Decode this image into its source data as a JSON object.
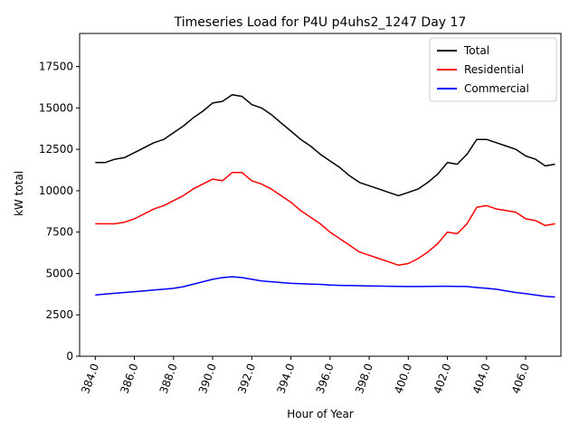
{
  "chart_data": {
    "type": "line",
    "title": "Timeseries Load for P4U p4uhs2_1247  Day 17",
    "xlabel": "Hour of Year",
    "ylabel": "kW total",
    "xlim": [
      383.2,
      407.8
    ],
    "ylim": [
      0,
      19500
    ],
    "x_ticks": [
      384,
      386,
      388,
      390,
      392,
      394,
      396,
      398,
      400,
      402,
      404,
      406
    ],
    "x_tick_labels": [
      "384.0",
      "386.0",
      "388.0",
      "390.0",
      "392.0",
      "394.0",
      "396.0",
      "398.0",
      "400.0",
      "402.0",
      "404.0",
      "406.0"
    ],
    "y_ticks": [
      0,
      2500,
      5000,
      7500,
      10000,
      12500,
      15000,
      17500
    ],
    "y_tick_labels": [
      "0",
      "2500",
      "5000",
      "7500",
      "10000",
      "12500",
      "15000",
      "17500"
    ],
    "legend": {
      "position": "upper right",
      "entries": [
        "Total",
        "Residential",
        "Commercial"
      ]
    },
    "x": [
      384,
      384.5,
      385,
      385.5,
      386,
      386.5,
      387,
      387.5,
      388,
      388.5,
      389,
      389.5,
      390,
      390.5,
      391,
      391.5,
      392,
      392.5,
      393,
      393.5,
      394,
      394.5,
      395,
      395.5,
      396,
      396.5,
      397,
      397.5,
      398,
      398.5,
      399,
      399.5,
      400,
      400.5,
      401,
      401.5,
      402,
      402.5,
      403,
      403.5,
      404,
      404.5,
      405,
      405.5,
      406,
      406.5,
      407,
      407.5
    ],
    "series": [
      {
        "name": "Total",
        "color": "#000000",
        "values": [
          11700,
          11700,
          11900,
          12000,
          12300,
          12600,
          12900,
          13100,
          13500,
          13900,
          14400,
          14800,
          15300,
          15400,
          15800,
          15700,
          15200,
          15000,
          14600,
          14100,
          13600,
          13100,
          12700,
          12200,
          11800,
          11400,
          10900,
          10500,
          10300,
          10100,
          9900,
          9700,
          9900,
          10100,
          10500,
          11000,
          11700,
          11600,
          12200,
          13100,
          13100,
          12900,
          12700,
          12500,
          12100,
          11900,
          11500,
          11600
        ]
      },
      {
        "name": "Residential",
        "color": "#ff0000",
        "values": [
          8000,
          8000,
          8000,
          8100,
          8300,
          8600,
          8900,
          9100,
          9400,
          9700,
          10100,
          10400,
          10700,
          10600,
          11100,
          11100,
          10600,
          10400,
          10100,
          9700,
          9300,
          8800,
          8400,
          8000,
          7500,
          7100,
          6700,
          6300,
          6100,
          5900,
          5700,
          5500,
          5600,
          5900,
          6300,
          6800,
          7500,
          7400,
          8000,
          9000,
          9100,
          8900,
          8800,
          8700,
          8300,
          8200,
          7900,
          8000
        ]
      },
      {
        "name": "Commercial",
        "color": "#0000ff",
        "values": [
          3700,
          3750,
          3800,
          3850,
          3900,
          3950,
          4000,
          4050,
          4100,
          4200,
          4350,
          4500,
          4650,
          4750,
          4800,
          4750,
          4650,
          4550,
          4500,
          4450,
          4400,
          4380,
          4360,
          4340,
          4300,
          4280,
          4270,
          4260,
          4250,
          4240,
          4230,
          4220,
          4210,
          4210,
          4220,
          4230,
          4230,
          4220,
          4210,
          4150,
          4100,
          4050,
          3950,
          3850,
          3780,
          3700,
          3620,
          3580
        ]
      }
    ]
  }
}
